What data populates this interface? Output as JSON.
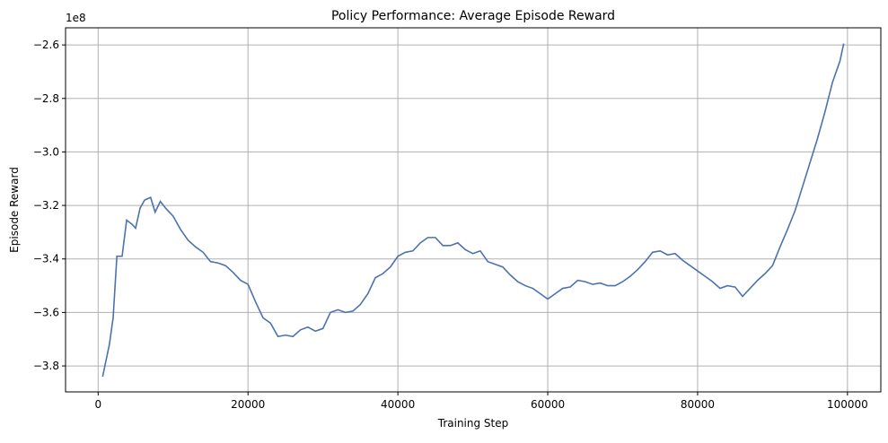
{
  "chart_data": {
    "type": "line",
    "title": "Policy Performance: Average Episode Reward",
    "x_label": "Training Step",
    "y_label": "Episode Reward",
    "y_offset_label": "1e8",
    "grid": true,
    "xlim": [
      -4350,
      104450
    ],
    "ylim": [
      -3.897,
      -2.536
    ],
    "xticks": [
      0,
      20000,
      40000,
      60000,
      80000,
      100000
    ],
    "yticks": [
      {
        "value": -3.8,
        "label": "−3.8"
      },
      {
        "value": -3.6,
        "label": "−3.6"
      },
      {
        "value": -3.4,
        "label": "−3.4"
      },
      {
        "value": -3.2,
        "label": "−3.2"
      },
      {
        "value": -3.0,
        "label": "−3.0"
      },
      {
        "value": -2.8,
        "label": "−2.8"
      },
      {
        "value": -2.6,
        "label": "−2.6"
      }
    ],
    "x": [
      600,
      1500,
      2000,
      2500,
      3200,
      3800,
      4500,
      5000,
      5600,
      6200,
      7000,
      7600,
      8300,
      9000,
      10000,
      11000,
      12000,
      13000,
      14000,
      15000,
      16000,
      17000,
      18000,
      19000,
      20000,
      21000,
      22000,
      23000,
      24000,
      25000,
      26000,
      27000,
      28000,
      29000,
      30000,
      31000,
      32000,
      33000,
      34000,
      35000,
      36000,
      37000,
      38000,
      39000,
      40000,
      41000,
      42000,
      43000,
      44000,
      45000,
      46000,
      47000,
      48000,
      49000,
      50000,
      51000,
      52000,
      53000,
      54000,
      55000,
      56000,
      57000,
      58000,
      59000,
      60000,
      61000,
      62000,
      63000,
      64000,
      65000,
      66000,
      67000,
      68000,
      69000,
      70000,
      71000,
      72000,
      73000,
      74000,
      75000,
      76000,
      77000,
      78000,
      79000,
      80000,
      81000,
      82000,
      83000,
      84000,
      85000,
      86000,
      87000,
      88000,
      89000,
      90000,
      91000,
      92000,
      93000,
      94000,
      95000,
      96000,
      97000,
      98000,
      99000,
      99500
    ],
    "series": [
      {
        "color": "#4c72b0",
        "values": [
          -3.84,
          -3.72,
          -3.62,
          -3.39,
          -3.39,
          -3.255,
          -3.27,
          -3.285,
          -3.21,
          -3.18,
          -3.17,
          -3.225,
          -3.185,
          -3.21,
          -3.24,
          -3.29,
          -3.33,
          -3.355,
          -3.375,
          -3.41,
          -3.415,
          -3.425,
          -3.45,
          -3.48,
          -3.495,
          -3.56,
          -3.62,
          -3.64,
          -3.69,
          -3.685,
          -3.69,
          -3.665,
          -3.655,
          -3.67,
          -3.66,
          -3.6,
          -3.59,
          -3.6,
          -3.595,
          -3.57,
          -3.53,
          -3.47,
          -3.455,
          -3.43,
          -3.39,
          -3.375,
          -3.37,
          -3.34,
          -3.32,
          -3.32,
          -3.35,
          -3.35,
          -3.34,
          -3.365,
          -3.38,
          -3.37,
          -3.41,
          -3.42,
          -3.43,
          -3.46,
          -3.485,
          -3.5,
          -3.51,
          -3.53,
          -3.55,
          -3.53,
          -3.51,
          -3.505,
          -3.48,
          -3.485,
          -3.495,
          -3.49,
          -3.5,
          -3.5,
          -3.485,
          -3.465,
          -3.44,
          -3.41,
          -3.375,
          -3.37,
          -3.385,
          -3.38,
          -3.405,
          -3.425,
          -3.445,
          -3.465,
          -3.485,
          -3.51,
          -3.5,
          -3.505,
          -3.54,
          -3.51,
          -3.48,
          -3.455,
          -3.425,
          -3.355,
          -3.29,
          -3.22,
          -3.13,
          -3.04,
          -2.95,
          -2.85,
          -2.74,
          -2.66,
          -2.595
        ]
      }
    ]
  }
}
